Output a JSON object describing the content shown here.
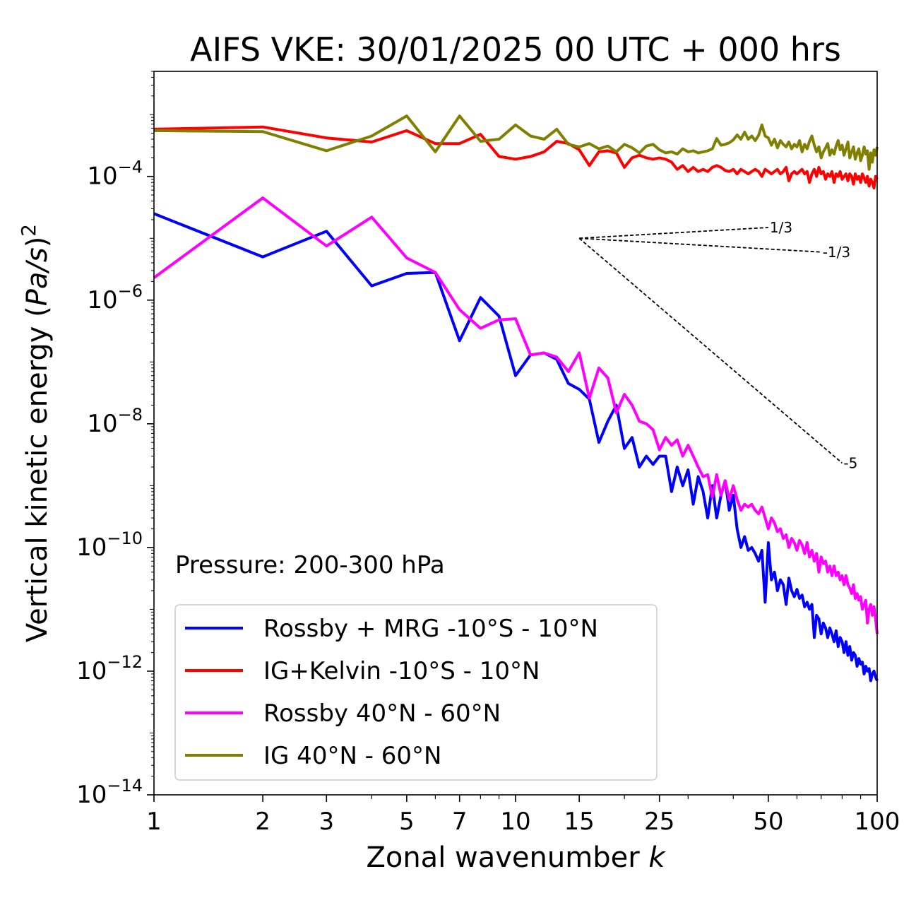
{
  "chart_data": {
    "type": "line",
    "title": "AIFS VKE: 30/01/2025 00 UTC + 000 hrs",
    "xlabel": "Zonal wavenumber k",
    "ylabel": "Vertical kinetic energy (Pa/s)²",
    "xscale": "log",
    "yscale": "log",
    "xlim": [
      1,
      100
    ],
    "ylim": [
      1e-14,
      0.005
    ],
    "x_ticks": [
      {
        "value": 1,
        "label": "1"
      },
      {
        "value": 2,
        "label": "2"
      },
      {
        "value": 3,
        "label": "3"
      },
      {
        "value": 5,
        "label": "5"
      },
      {
        "value": 7,
        "label": "7"
      },
      {
        "value": 10,
        "label": "10"
      },
      {
        "value": 15,
        "label": "15"
      },
      {
        "value": 25,
        "label": "25"
      },
      {
        "value": 50,
        "label": "50"
      },
      {
        "value": 100,
        "label": "100"
      }
    ],
    "y_ticks": [
      {
        "value": 1e-14,
        "base": "10",
        "exp": "−14"
      },
      {
        "value": 1e-12,
        "base": "10",
        "exp": "−12"
      },
      {
        "value": 1e-10,
        "base": "10",
        "exp": "−10"
      },
      {
        "value": 1e-08,
        "base": "10",
        "exp": "−8"
      },
      {
        "value": 1e-06,
        "base": "10",
        "exp": "−6"
      },
      {
        "value": 0.0001,
        "base": "10",
        "exp": "−4"
      }
    ],
    "annotation": "Pressure: 200-300 hPa",
    "legend_position": "lower-left",
    "grid": false,
    "reference_slopes": [
      {
        "label": "1/3",
        "slope": 0.3333,
        "x0": 15,
        "y0": 1e-05,
        "x1": 50
      },
      {
        "label": "-1/3",
        "slope": -0.3333,
        "x0": 15,
        "y0": 1e-05,
        "x1": 70
      },
      {
        "label": "-5",
        "slope": -5,
        "x0": 15,
        "y0": 1e-05,
        "x1": 80
      }
    ],
    "series": [
      {
        "name": "Rossby + MRG -10°S - 10°N",
        "color": "#0000ff",
        "x": [
          1,
          2,
          3,
          4,
          5,
          6,
          7,
          8,
          9,
          10,
          11,
          12,
          13,
          14,
          15,
          16,
          17,
          18,
          19,
          20,
          21,
          22,
          23,
          24,
          25,
          26,
          27,
          28,
          29,
          30,
          31,
          32,
          33,
          34,
          35,
          36,
          37,
          38,
          39,
          40,
          41,
          42,
          43,
          44,
          45,
          46,
          47,
          48,
          49,
          50,
          51,
          52,
          53,
          54,
          55,
          56,
          57,
          58,
          59,
          60,
          61,
          62,
          63,
          64,
          65,
          66,
          67,
          68,
          69,
          70,
          71,
          72,
          73,
          74,
          75,
          76,
          77,
          78,
          79,
          80,
          81,
          82,
          83,
          84,
          85,
          86,
          87,
          88,
          89,
          90,
          91,
          92,
          93,
          94,
          95,
          96,
          97,
          98,
          99,
          100
        ],
        "y": [
          2.5e-05,
          5e-06,
          1.3e-05,
          1.7e-06,
          2.7e-06,
          2.8e-06,
          2.2e-07,
          1.1e-06,
          5.5e-07,
          6e-08,
          1.3e-07,
          1.4e-07,
          1.1e-07,
          4.5e-08,
          3.6e-08,
          2.5e-08,
          5e-09,
          1.1e-08,
          2e-08,
          4e-09,
          6e-09,
          2e-09,
          3e-09,
          2.2e-09,
          3e-09,
          3e-09,
          8e-10,
          2e-09,
          1e-09,
          1.8e-09,
          5e-10,
          1.4e-09,
          8e-10,
          3e-10,
          1e-09,
          3e-10,
          7e-10,
          1.2e-09,
          4e-10,
          7e-10,
          2e-10,
          1e-10,
          1.5e-10,
          9e-11,
          1e-10,
          8e-11,
          6e-11,
          9e-11,
          1.3e-11,
          1.2e-10,
          3e-11,
          4e-11,
          2e-11,
          3e-11,
          2.5e-11,
          1.2e-11,
          3.2e-11,
          2e-11,
          1.6e-11,
          2.1e-11,
          1.5e-11,
          1.7e-11,
          1.1e-11,
          1.3e-11,
          1e-11,
          1.2e-11,
          3.5e-12,
          8e-12,
          7e-12,
          4e-12,
          6e-12,
          5e-12,
          3.5e-12,
          5e-12,
          4e-12,
          3e-12,
          4.5e-12,
          2.5e-12,
          3.5e-12,
          3e-12,
          2e-12,
          3e-12,
          1.8e-12,
          2.5e-12,
          1.5e-12,
          2e-12,
          1.8e-12,
          1.2e-12,
          1.6e-12,
          1.3e-12,
          1.4e-12,
          9e-13,
          1.2e-12,
          1e-12,
          1.1e-12,
          7e-13,
          9e-13,
          1e-12,
          8e-13,
          7e-13
        ]
      },
      {
        "name": "IG+Kelvin -10°S - 10°N",
        "color": "#ff0000",
        "x": [
          1,
          2,
          3,
          4,
          5,
          6,
          7,
          8,
          9,
          10,
          11,
          12,
          13,
          14,
          15,
          16,
          17,
          18,
          19,
          20,
          21,
          22,
          23,
          24,
          25,
          26,
          27,
          28,
          29,
          30,
          31,
          32,
          33,
          34,
          35,
          36,
          37,
          38,
          39,
          40,
          41,
          42,
          43,
          44,
          45,
          46,
          47,
          48,
          49,
          50,
          51,
          52,
          53,
          54,
          55,
          56,
          57,
          58,
          59,
          60,
          61,
          62,
          63,
          64,
          65,
          66,
          67,
          68,
          69,
          70,
          71,
          72,
          73,
          74,
          75,
          76,
          77,
          78,
          79,
          80,
          81,
          82,
          83,
          84,
          85,
          86,
          87,
          88,
          89,
          90,
          91,
          92,
          93,
          94,
          95,
          96,
          97,
          98,
          99,
          100
        ],
        "y": [
          0.00058,
          0.00063,
          0.00042,
          0.00036,
          0.00055,
          0.00034,
          0.00034,
          0.00048,
          0.00021,
          0.00019,
          0.00021,
          0.00025,
          0.00037,
          0.00034,
          0.00027,
          0.00015,
          0.00025,
          0.00026,
          0.00024,
          0.00014,
          0.0002,
          0.00022,
          0.0002,
          0.00019,
          0.0002,
          0.00019,
          0.00017,
          0.00013,
          0.00015,
          0.00012,
          0.00014,
          0.00012,
          0.00013,
          0.00012,
          0.00014,
          0.00015,
          0.00014,
          0.000125,
          0.00012,
          0.00013,
          0.00011,
          0.00013,
          0.00012,
          0.00011,
          0.00012,
          0.00013,
          0.00012,
          0.0001,
          0.00013,
          0.00012,
          0.00011,
          0.00012,
          0.00013,
          0.00011,
          0.00012,
          0.00014,
          8.5e-05,
          0.00011,
          0.00012,
          0.00011,
          0.00012,
          0.00013,
          0.00011,
          0.00012,
          8e-05,
          0.00011,
          0.00013,
          0.0001,
          0.00014,
          0.00011,
          0.00012,
          9e-05,
          0.00011,
          0.0001,
          0.00012,
          8e-05,
          0.00011,
          0.0001,
          0.00012,
          9e-05,
          0.0001,
          0.00011,
          8.5e-05,
          0.00011,
          0.0001,
          7.5e-05,
          0.00011,
          9e-05,
          0.0001,
          8e-05,
          0.00011,
          9.5e-05,
          8e-05,
          0.0001,
          7e-05,
          9e-05,
          8e-05,
          6.5e-05,
          0.0001,
          9e-05
        ]
      },
      {
        "name": "Rossby 40°N - 60°N",
        "color": "#ff00ff",
        "x": [
          1,
          2,
          3,
          4,
          5,
          6,
          7,
          8,
          9,
          10,
          11,
          12,
          13,
          14,
          15,
          16,
          17,
          18,
          19,
          20,
          21,
          22,
          23,
          24,
          25,
          26,
          27,
          28,
          29,
          30,
          31,
          32,
          33,
          34,
          35,
          36,
          37,
          38,
          39,
          40,
          41,
          42,
          43,
          44,
          45,
          46,
          47,
          48,
          49,
          50,
          51,
          52,
          53,
          54,
          55,
          56,
          57,
          58,
          59,
          60,
          61,
          62,
          63,
          64,
          65,
          66,
          67,
          68,
          69,
          70,
          71,
          72,
          73,
          74,
          75,
          76,
          77,
          78,
          79,
          80,
          81,
          82,
          83,
          84,
          85,
          86,
          87,
          88,
          89,
          90,
          91,
          92,
          93,
          94,
          95,
          96,
          97,
          98,
          99,
          100
        ],
        "y": [
          2.3e-06,
          4.5e-05,
          7.5e-06,
          2.2e-05,
          4.8e-06,
          2.8e-06,
          7e-07,
          3.5e-07,
          4.8e-07,
          5e-07,
          1.3e-07,
          1.4e-07,
          1.2e-07,
          7e-08,
          1.4e-07,
          2.6e-08,
          8e-08,
          5.5e-08,
          1.5e-08,
          3e-08,
          2e-08,
          1.1e-08,
          1e-08,
          8e-09,
          3.8e-09,
          6e-09,
          4.5e-09,
          5.5e-09,
          3e-09,
          4.5e-09,
          3e-09,
          2e-09,
          1.4e-09,
          1.5e-09,
          6.5e-10,
          1.5e-09,
          7e-10,
          1.2e-09,
          6e-10,
          1e-09,
          6e-10,
          4e-10,
          5e-10,
          4.5e-10,
          5e-10,
          4e-10,
          3.5e-10,
          4.5e-10,
          3e-10,
          2e-10,
          3e-10,
          2.5e-10,
          1.8e-10,
          2e-10,
          1.4e-10,
          1.6e-10,
          1e-10,
          1.4e-10,
          1.2e-10,
          9e-11,
          1.3e-10,
          1.1e-10,
          8e-11,
          1.2e-10,
          7e-11,
          9e-11,
          6e-11,
          8e-11,
          4e-11,
          7e-11,
          5.5e-11,
          6e-11,
          4e-11,
          5e-11,
          3.5e-11,
          5e-11,
          3.5e-11,
          4e-11,
          3e-11,
          3.5e-11,
          2.5e-11,
          3.5e-11,
          2.5e-11,
          2.2e-11,
          1.8e-11,
          2.5e-11,
          1.5e-11,
          1.8e-11,
          1.4e-11,
          1.6e-11,
          1e-11,
          1.2e-11,
          1.4e-11,
          6e-12,
          1e-11,
          1.2e-11,
          8e-12,
          1.1e-11,
          7e-12,
          4e-12
        ]
      },
      {
        "name": "IG 40°N - 60°N",
        "color": "#808000",
        "x": [
          1,
          2,
          3,
          4,
          5,
          6,
          7,
          8,
          9,
          10,
          11,
          12,
          13,
          14,
          15,
          16,
          17,
          18,
          19,
          20,
          21,
          22,
          23,
          24,
          25,
          26,
          27,
          28,
          29,
          30,
          31,
          32,
          33,
          34,
          35,
          36,
          37,
          38,
          39,
          40,
          41,
          42,
          43,
          44,
          45,
          46,
          47,
          48,
          49,
          50,
          51,
          52,
          53,
          54,
          55,
          56,
          57,
          58,
          59,
          60,
          61,
          62,
          63,
          64,
          65,
          66,
          67,
          68,
          69,
          70,
          71,
          72,
          73,
          74,
          75,
          76,
          77,
          78,
          79,
          80,
          81,
          82,
          83,
          84,
          85,
          86,
          87,
          88,
          89,
          90,
          91,
          92,
          93,
          94,
          95,
          96,
          97,
          98,
          99,
          100
        ],
        "y": [
          0.00055,
          0.00053,
          0.00026,
          0.00045,
          0.00095,
          0.00025,
          0.00095,
          0.00037,
          0.0004,
          0.00068,
          0.00045,
          0.0004,
          0.00058,
          0.00033,
          0.0003,
          0.00034,
          0.00028,
          0.00031,
          0.00025,
          0.00033,
          0.00029,
          0.00024,
          0.00031,
          0.00033,
          0.00027,
          0.00024,
          0.00025,
          0.00023,
          0.00028,
          0.00025,
          0.00026,
          0.00024,
          0.00025,
          0.00026,
          0.00028,
          0.00041,
          0.00032,
          0.00033,
          0.00035,
          0.00039,
          0.00047,
          0.0004,
          0.00052,
          0.0004,
          0.00045,
          0.00038,
          0.00046,
          0.00068,
          0.00045,
          0.00042,
          0.00032,
          0.0004,
          0.00029,
          0.00038,
          0.00033,
          0.0003,
          0.00036,
          0.00028,
          0.00033,
          0.0003,
          0.00038,
          0.00025,
          0.00033,
          0.00028,
          0.00037,
          0.00045,
          0.00032,
          0.00025,
          0.0003,
          0.0002,
          0.00025,
          0.00029,
          0.00034,
          0.00022,
          0.00027,
          0.00023,
          0.00031,
          0.00038,
          0.00027,
          0.00032,
          0.00022,
          0.00028,
          0.00036,
          0.0002,
          0.00025,
          0.0003,
          0.00019,
          0.00024,
          0.00028,
          0.00018,
          0.00022,
          0.0003,
          0.00023,
          0.00026,
          0.00013,
          0.00024,
          0.00017,
          0.00027,
          0.00022,
          0.0003
        ]
      }
    ]
  }
}
